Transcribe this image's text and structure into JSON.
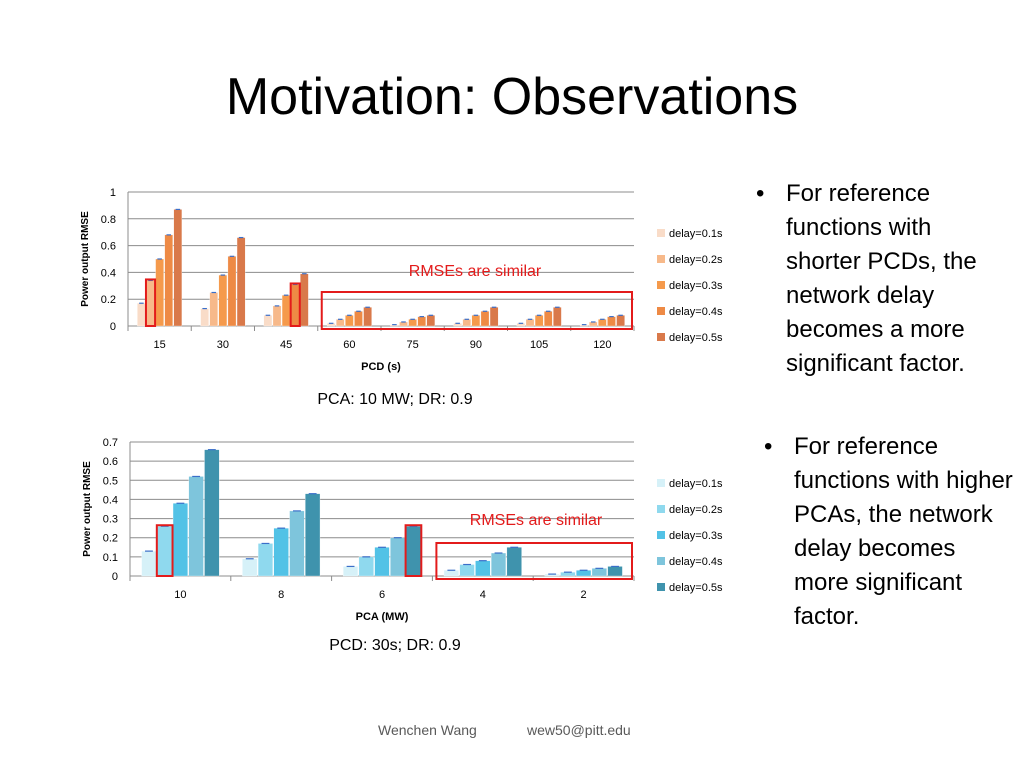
{
  "slide": {
    "title": "Motivation: Observations",
    "bullets": [
      "For reference functions with shorter PCDs, the network delay becomes a more significant factor.",
      "For reference functions with higher PCAs, the network delay becomes more significant factor."
    ],
    "bullet_symbol": "•",
    "footer": {
      "author": "Wenchen Wang",
      "email": "wew50@pitt.edu"
    }
  },
  "chart_data": [
    {
      "type": "bar",
      "xlabel": "PCD (s)",
      "ylabel": "Power output RMSE",
      "caption": "PCA: 10 MW; DR: 0.9",
      "annotation": "RMSEs are similar",
      "categories": [
        "15",
        "30",
        "45",
        "60",
        "75",
        "90",
        "105",
        "120"
      ],
      "yticks": [
        "0",
        "0.2",
        "0.4",
        "0.6",
        "0.8",
        "1"
      ],
      "ylim": [
        0,
        1
      ],
      "grid": true,
      "legend_position": "right",
      "series": [
        {
          "name": "delay=0.1s",
          "values": [
            0.17,
            0.13,
            0.08,
            0.02,
            0.01,
            0.02,
            0.02,
            0.01
          ]
        },
        {
          "name": "delay=0.2s",
          "values": [
            0.34,
            0.25,
            0.15,
            0.05,
            0.03,
            0.05,
            0.05,
            0.03
          ]
        },
        {
          "name": "delay=0.3s",
          "values": [
            0.5,
            0.38,
            0.23,
            0.08,
            0.05,
            0.08,
            0.08,
            0.05
          ]
        },
        {
          "name": "delay=0.4s",
          "values": [
            0.68,
            0.52,
            0.31,
            0.11,
            0.07,
            0.11,
            0.11,
            0.07
          ]
        },
        {
          "name": "delay=0.5s",
          "values": [
            0.87,
            0.66,
            0.39,
            0.14,
            0.08,
            0.14,
            0.14,
            0.08
          ]
        }
      ],
      "highlighted_bars": [
        {
          "category": "15",
          "series": "delay=0.2s"
        },
        {
          "category": "45",
          "series": "delay=0.4s"
        }
      ],
      "highlighted_categories": [
        "60",
        "75",
        "90",
        "105",
        "120"
      ],
      "colors": {
        "series": [
          "#f9dcc8",
          "#f7b98a",
          "#f59a4c",
          "#ee8a45",
          "#d9794a"
        ],
        "highlight": "#e31b1b",
        "annotation": "#e31b1b"
      }
    },
    {
      "type": "bar",
      "xlabel": "PCA (MW)",
      "ylabel": "Power output RMSE",
      "caption": "PCD: 30s; DR: 0.9",
      "annotation": "RMSEs are similar",
      "categories": [
        "10",
        "8",
        "6",
        "4",
        "2"
      ],
      "yticks": [
        "0",
        "0.1",
        "0.2",
        "0.3",
        "0.4",
        "0.5",
        "0.6",
        "0.7"
      ],
      "ylim": [
        0,
        0.7
      ],
      "grid": true,
      "legend_position": "right",
      "series": [
        {
          "name": "delay=0.1s",
          "values": [
            0.13,
            0.09,
            0.05,
            0.03,
            0.01
          ]
        },
        {
          "name": "delay=0.2s",
          "values": [
            0.26,
            0.17,
            0.1,
            0.06,
            0.02
          ]
        },
        {
          "name": "delay=0.3s",
          "values": [
            0.38,
            0.25,
            0.15,
            0.08,
            0.03
          ]
        },
        {
          "name": "delay=0.4s",
          "values": [
            0.52,
            0.34,
            0.2,
            0.12,
            0.04
          ]
        },
        {
          "name": "delay=0.5s",
          "values": [
            0.66,
            0.43,
            0.26,
            0.15,
            0.05
          ]
        }
      ],
      "highlighted_bars": [
        {
          "category": "10",
          "series": "delay=0.2s"
        },
        {
          "category": "6",
          "series": "delay=0.5s"
        }
      ],
      "highlighted_categories": [
        "4",
        "2"
      ],
      "colors": {
        "series": [
          "#d6f1f8",
          "#8fd9ee",
          "#52c2e6",
          "#7ec5dc",
          "#3f93ad"
        ],
        "highlight": "#e31b1b",
        "annotation": "#e31b1b"
      }
    }
  ]
}
